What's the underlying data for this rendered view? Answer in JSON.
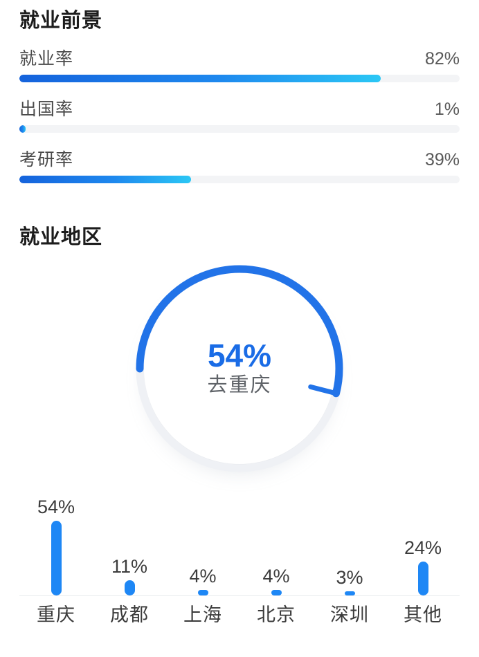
{
  "page_background": "#ffffff",
  "sections": {
    "prospects": {
      "title": "就业前景",
      "stats": [
        {
          "label": "就业率",
          "value": 82,
          "value_label": "82%"
        },
        {
          "label": "出国率",
          "value": 1,
          "value_label": "1%"
        },
        {
          "label": "考研率",
          "value": 39,
          "value_label": "39%"
        }
      ],
      "bar_gradient": [
        "#1563dc",
        "#2bc7f5"
      ],
      "track_color": "#f3f4f6"
    },
    "region": {
      "title": "就业地区"
    }
  },
  "chart_data": [
    {
      "type": "donut",
      "title": "就业地区",
      "series": [
        {
          "name": "去重庆",
          "value": 54
        }
      ],
      "center_label": "54%",
      "center_sublabel": "去重庆",
      "arc_color": "#2273e8",
      "ring_color": "#eff1f5",
      "start_position": "9-oclock",
      "direction": "clockwise",
      "end_tick": true
    },
    {
      "type": "bar",
      "categories": [
        "重庆",
        "成都",
        "上海",
        "北京",
        "深圳",
        "其他"
      ],
      "values": [
        54,
        11,
        4,
        4,
        3,
        24
      ],
      "value_labels": [
        "54%",
        "11%",
        "4%",
        "4%",
        "3%",
        "24%"
      ],
      "bar_color": "#1e87f5",
      "baseline_color": "#e9ebee",
      "ylim": [
        0,
        60
      ],
      "grid": false,
      "legend": false
    }
  ]
}
